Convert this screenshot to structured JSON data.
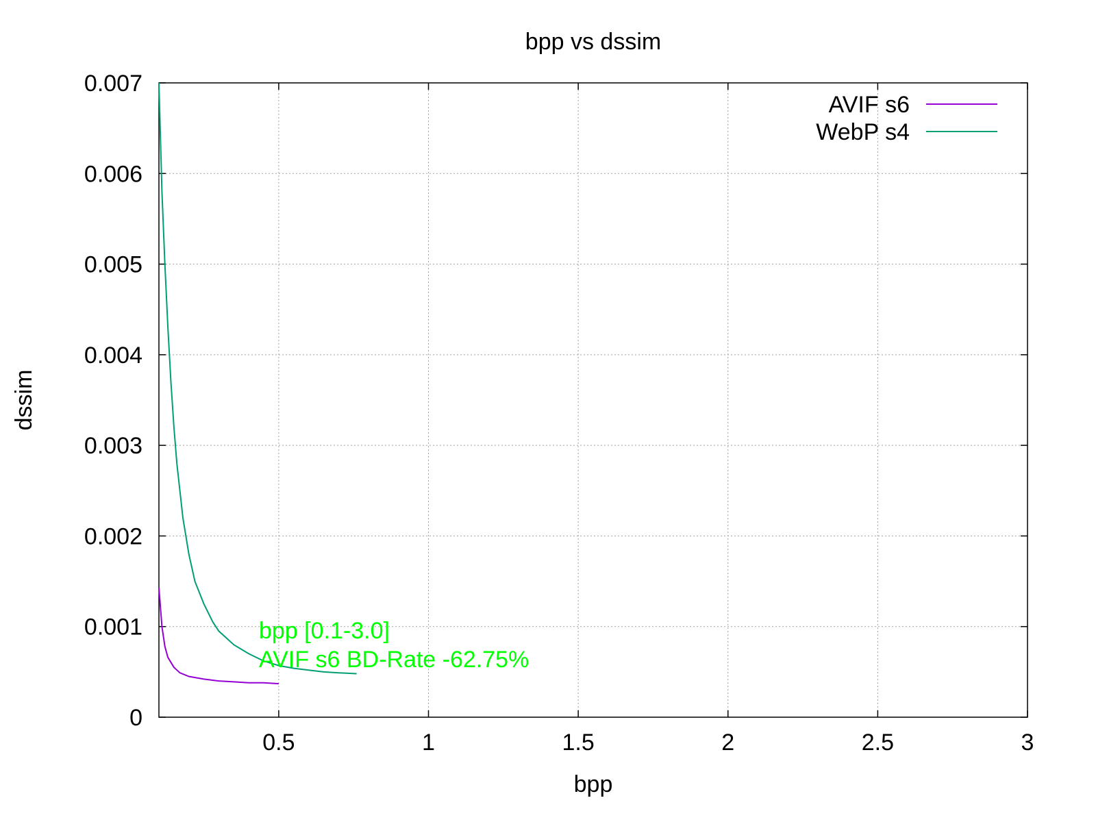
{
  "chart_data": {
    "type": "line",
    "title": "bpp vs dssim",
    "xlabel": "bpp",
    "ylabel": "dssim",
    "xlim": [
      0.1,
      3.0
    ],
    "ylim": [
      0,
      0.007
    ],
    "x_ticks": [
      0.5,
      1,
      1.5,
      2,
      2.5,
      3
    ],
    "x_tick_labels": [
      "0.5",
      "1",
      "1.5",
      "2",
      "2.5",
      "3"
    ],
    "y_ticks": [
      0,
      0.001,
      0.002,
      0.003,
      0.004,
      0.005,
      0.006,
      0.007
    ],
    "y_tick_labels": [
      "0",
      "0.001",
      "0.002",
      "0.003",
      "0.004",
      "0.005",
      "0.006",
      "0.007"
    ],
    "grid": true,
    "legend_position": "top-right",
    "series": [
      {
        "name": "AVIF s6",
        "color": "#9400d3",
        "x": [
          0.1,
          0.11,
          0.12,
          0.13,
          0.15,
          0.17,
          0.2,
          0.25,
          0.3,
          0.35,
          0.4,
          0.45,
          0.5
        ],
        "y": [
          0.00143,
          0.001,
          0.00078,
          0.00066,
          0.00055,
          0.00049,
          0.00045,
          0.00042,
          0.0004,
          0.00039,
          0.00038,
          0.00038,
          0.00037
        ]
      },
      {
        "name": "WebP s4",
        "color": "#009e73",
        "x": [
          0.1,
          0.11,
          0.12,
          0.13,
          0.14,
          0.15,
          0.16,
          0.17,
          0.18,
          0.2,
          0.22,
          0.25,
          0.28,
          0.3,
          0.35,
          0.4,
          0.45,
          0.5,
          0.55,
          0.6,
          0.65,
          0.7,
          0.76
        ],
        "y": [
          0.007,
          0.0058,
          0.005,
          0.0043,
          0.0037,
          0.0032,
          0.0028,
          0.0025,
          0.0022,
          0.0018,
          0.0015,
          0.00125,
          0.00105,
          0.00095,
          0.0008,
          0.0007,
          0.00062,
          0.00057,
          0.00054,
          0.00052,
          0.0005,
          0.00049,
          0.00048
        ]
      }
    ],
    "annotations": [
      "bpp [0.1-3.0]",
      "AVIF s6 BD-Rate -62.75%"
    ],
    "annotation_color": "#00ff00"
  }
}
